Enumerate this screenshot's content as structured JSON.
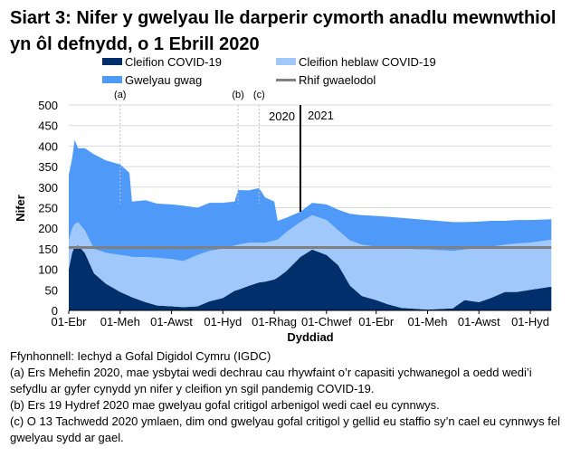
{
  "title": "Siart 3: Nifer y gwelyau lle darperir cymorth anadlu mewnwthiol yn ôl defnydd, o 1 Ebrill 2020",
  "legend": [
    {
      "label": "Cleifion COVID-19",
      "color": "#002f6c",
      "kind": "area"
    },
    {
      "label": "Cleifion heblaw COVID-19",
      "color": "#a0c8fa",
      "kind": "area"
    },
    {
      "label": "Gwelyau gwag",
      "color": "#4f9af8",
      "kind": "area"
    },
    {
      "label": "Rhif gwaelodol",
      "color": "#808080",
      "kind": "line"
    }
  ],
  "chart_data": {
    "type": "area",
    "stacked": true,
    "title": "Siart 3: Nifer y gwelyau lle darperir cymorth anadlu mewnwthiol yn ôl defnydd, o 1 Ebrill 2020",
    "xlabel": "Dyddiad",
    "ylabel": "Nifer",
    "ylim": [
      0,
      500
    ],
    "yticks": [
      0,
      50,
      100,
      150,
      200,
      250,
      300,
      350,
      400,
      450,
      500
    ],
    "grid": true,
    "legend_position": "top",
    "xticks": [
      {
        "date": "2020-04-01",
        "label": "01-Ebr"
      },
      {
        "date": "2020-06-01",
        "label": "01-Meh"
      },
      {
        "date": "2020-08-01",
        "label": "01-Awst"
      },
      {
        "date": "2020-10-01",
        "label": "01-Hyd"
      },
      {
        "date": "2020-12-01",
        "label": "01-Rhag"
      },
      {
        "date": "2021-02-01",
        "label": "01-Chwef"
      },
      {
        "date": "2021-04-01",
        "label": "01-Ebr"
      },
      {
        "date": "2021-06-01",
        "label": "01-Meh"
      },
      {
        "date": "2021-08-01",
        "label": "01-Awst"
      },
      {
        "date": "2021-10-01",
        "label": "01-Hyd"
      }
    ],
    "x": [
      "2020-04-01",
      "2020-04-05",
      "2020-04-08",
      "2020-04-12",
      "2020-04-20",
      "2020-05-01",
      "2020-05-15",
      "2020-06-01",
      "2020-06-12",
      "2020-06-15",
      "2020-07-01",
      "2020-07-15",
      "2020-08-01",
      "2020-08-15",
      "2020-09-01",
      "2020-09-15",
      "2020-10-01",
      "2020-10-15",
      "2020-10-19",
      "2020-11-01",
      "2020-11-13",
      "2020-11-20",
      "2020-12-01",
      "2020-12-05",
      "2020-12-15",
      "2021-01-01",
      "2021-01-15",
      "2021-02-01",
      "2021-02-15",
      "2021-03-01",
      "2021-03-15",
      "2021-04-01",
      "2021-04-15",
      "2021-05-01",
      "2021-06-01",
      "2021-07-01",
      "2021-07-15",
      "2021-08-01",
      "2021-08-15",
      "2021-09-01",
      "2021-09-15",
      "2021-10-01",
      "2021-10-26"
    ],
    "series": [
      {
        "name": "Cleifion COVID-19",
        "color": "#002f6c",
        "values": [
          100,
          140,
          155,
          158,
          140,
          90,
          65,
          45,
          35,
          32,
          20,
          12,
          10,
          8,
          10,
          22,
          30,
          48,
          50,
          60,
          68,
          70,
          75,
          80,
          95,
          130,
          148,
          135,
          110,
          60,
          35,
          25,
          15,
          6,
          2,
          5,
          25,
          20,
          30,
          45,
          45,
          50,
          58
        ]
      },
      {
        "name": "Cleifion heblaw COVID-19",
        "color": "#a0c8fa",
        "values": [
          70,
          60,
          55,
          57,
          55,
          60,
          75,
          90,
          97,
          98,
          110,
          116,
          115,
          112,
          125,
          123,
          120,
          110,
          110,
          105,
          97,
          95,
          95,
          92,
          95,
          85,
          84,
          85,
          85,
          110,
          125,
          130,
          137,
          144,
          146,
          140,
          123,
          132,
          125,
          115,
          118,
          115,
          114
        ]
      },
      {
        "name": "Gwelyau gwag",
        "color": "#4f9af8",
        "values": [
          160,
          170,
          205,
          180,
          200,
          230,
          225,
          220,
          203,
          135,
          138,
          132,
          133,
          135,
          115,
          117,
          112,
          107,
          133,
          127,
          133,
          110,
          95,
          46,
          35,
          25,
          30,
          38,
          50,
          65,
          72,
          75,
          76,
          75,
          72,
          70,
          67,
          64,
          63,
          58,
          57,
          55,
          50
        ]
      }
    ],
    "reference_line": {
      "name": "Rhif gwaelodol",
      "value": 153,
      "color": "#808080"
    },
    "annotations": [
      {
        "date": "2020-06-01",
        "label": "(a)"
      },
      {
        "date": "2020-10-19",
        "label": "(b)"
      },
      {
        "date": "2020-11-13",
        "label": "(c)"
      }
    ],
    "year_divider": {
      "date": "2021-01-01",
      "left_label": "2020",
      "right_label": "2021"
    }
  },
  "notes": [
    "Ffynhonnell: Iechyd a Gofal Digidol Cymru (IGDC)",
    "(a) Ers Mehefin 2020, mae ysbytai wedi dechrau cau rhywfaint o’r capasiti ychwanegol a oedd wedi’i sefydlu ar gyfer cynydd yn nifer y cleifion yn sgil pandemig COVID-19.",
    "(b) Ers 19 Hydref 2020 mae gwelyau gofal critigol arbenigol wedi cael eu cynnwys.",
    "(c) O 13 Tachwedd 2020 ymlaen, dim ond gwelyau gofal critigol y gellid eu staffio sy’n cael eu cynnwys fel gwelyau sydd ar gael."
  ]
}
